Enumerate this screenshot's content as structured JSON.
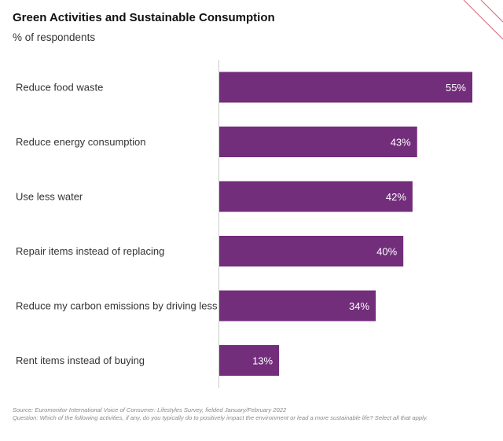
{
  "title": "Green Activities and Sustainable Consumption",
  "subtitle": "% of respondents",
  "colors": {
    "bar": "#722d7b",
    "axis": "#cccccc",
    "accent": "#e0627a",
    "label_inside": "#ffffff"
  },
  "chart_data": {
    "type": "bar",
    "orientation": "horizontal",
    "categories": [
      "Reduce food waste",
      "Reduce energy consumption",
      "Use less water",
      "Repair items instead of replacing",
      "Reduce my carbon emissions by driving less",
      "Rent items instead of buying"
    ],
    "values": [
      55,
      43,
      42,
      40,
      34,
      13
    ],
    "data_labels": [
      "55%",
      "43%",
      "42%",
      "40%",
      "34%",
      "13%"
    ],
    "unit": "%",
    "xlim": [
      0,
      55
    ],
    "grid": false,
    "legend": "none"
  },
  "footer": {
    "source": "Source: Euromonitor International Voice of Consumer: Lifestyles Survey, fielded January/February 2022",
    "question": "Question: Which of the following activities, if any, do you typically do to positively impact the environment or lead a more sustainable life? Select all that apply."
  }
}
